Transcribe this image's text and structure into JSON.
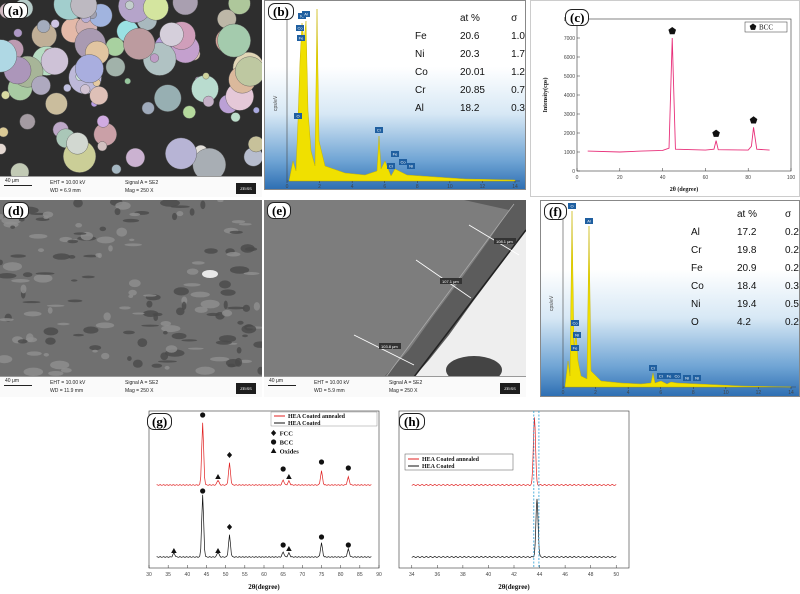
{
  "panels": {
    "a": {
      "label": "(a)",
      "footer": {
        "scale": "40 μm",
        "eht": "EHT = 10.00 kV",
        "wd": "WD = 6.9 mm",
        "signal": "Signal A = SE2",
        "mag": "Mag =      250 X"
      }
    },
    "b": {
      "label": "(b)",
      "table_header": [
        "at %",
        "σ"
      ],
      "rows": [
        {
          "el": "Fe",
          "at": "20.6",
          "sd": "1.0"
        },
        {
          "el": "Ni",
          "at": "20.3",
          "sd": "1.7"
        },
        {
          "el": "Co",
          "at": "20.01",
          "sd": "1.2"
        },
        {
          "el": "Cr",
          "at": "20.85",
          "sd": "0.7"
        },
        {
          "el": "Al",
          "at": "18.2",
          "sd": "0.3"
        }
      ],
      "ylabel": "cps/eV",
      "xticks": [
        "0",
        "2",
        "4",
        "6",
        "8",
        "10",
        "12",
        "14"
      ],
      "peaks": [
        "Fe",
        "Ni",
        "Co",
        "Al",
        "Cr",
        "Cr",
        "Fe",
        "Co",
        "Ni",
        "Ni",
        "O"
      ]
    },
    "c": {
      "label": "(c)",
      "legend": "BCC",
      "ylabel": "Intensity(cps)",
      "xlabel": "2θ (degree)",
      "yticks": [
        "0",
        "1000",
        "2000",
        "3000",
        "4000",
        "5000",
        "6000",
        "7000",
        "8000"
      ],
      "xticks": [
        "0",
        "20",
        "40",
        "60",
        "80",
        "100"
      ]
    },
    "d": {
      "label": "(d)",
      "footer": {
        "scale": "40 μm",
        "eht": "EHT = 10.00 kV",
        "wd": "WD = 11.9 mm",
        "signal": "Signal A = SE2",
        "mag": "Mag =      250 X"
      }
    },
    "e": {
      "label": "(e)",
      "footer": {
        "scale": "40 μm",
        "eht": "EHT = 10.00 kV",
        "wd": "WD = 5.9 mm",
        "signal": "Signal A = SE2",
        "mag": "Mag =      250 X"
      },
      "measurements": [
        "103.8 μm",
        "107.1 μm",
        "108.1 μm"
      ]
    },
    "f": {
      "label": "(f)",
      "table_header": [
        "at %",
        "σ"
      ],
      "rows": [
        {
          "el": "Al",
          "at": "17.2",
          "sd": "0.2"
        },
        {
          "el": "Cr",
          "at": "19.8",
          "sd": "0.2"
        },
        {
          "el": "Fe",
          "at": "20.9",
          "sd": "0.2"
        },
        {
          "el": "Co",
          "at": "18.4",
          "sd": "0.3"
        },
        {
          "el": "Ni",
          "at": "19.4",
          "sd": "0.5"
        },
        {
          "el": "O",
          "at": "4.2",
          "sd": "0.2"
        }
      ],
      "ylabel": "cps/eV",
      "xticks": [
        "0",
        "2",
        "4",
        "6",
        "8",
        "10",
        "12",
        "14"
      ]
    },
    "g": {
      "label": "(g)",
      "legend": [
        "HEA Coated annealed",
        "HEA Coated"
      ],
      "markers": [
        "FCC",
        "BCC",
        "Oxides"
      ],
      "xlabel": "2θ(degree)",
      "xticks": [
        "30",
        "35",
        "40",
        "45",
        "50",
        "55",
        "60",
        "65",
        "70",
        "75",
        "80",
        "85",
        "90"
      ]
    },
    "h": {
      "label": "(h)",
      "legend": [
        "HEA Coated annealed",
        "HEA Coated"
      ],
      "xlabel": "2θ(degree)",
      "xticks": [
        "34",
        "36",
        "38",
        "40",
        "42",
        "44",
        "46",
        "48",
        "50"
      ]
    }
  },
  "zeiss_text": "ZEISS",
  "colors": {
    "annealed": "#e02020",
    "coated": "#111111",
    "c_line": "#e8307a",
    "eds_fill": "#f0e000",
    "dashed": "#2a9fd6"
  },
  "chart_data": [
    {
      "type": "line",
      "title": "",
      "xlabel": "2θ (degree)",
      "ylabel": "Intensity(cps)",
      "xlim": [
        0,
        100
      ],
      "ylim": [
        0,
        8000
      ],
      "series": [
        {
          "name": "",
          "x": [
            5,
            20,
            30,
            40,
            43,
            44.5,
            46,
            60,
            64,
            65,
            66,
            80,
            81.5,
            82.5,
            84,
            90
          ],
          "values": [
            1050,
            1000,
            1050,
            1080,
            1200,
            7000,
            1150,
            1100,
            1150,
            1600,
            1120,
            1100,
            1300,
            2300,
            1150,
            1100
          ]
        }
      ],
      "markers": [
        {
          "label": "BCC",
          "x": 44.5
        },
        {
          "label": "BCC",
          "x": 65
        },
        {
          "label": "BCC",
          "x": 82.5
        }
      ]
    },
    {
      "type": "line",
      "title": "",
      "xlabel": "2θ(degree)",
      "ylabel": "",
      "xlim": [
        30,
        90
      ],
      "series": [
        {
          "name": "HEA Coated annealed",
          "peaks": [
            44,
            48,
            51,
            65,
            66.5,
            75,
            82
          ]
        },
        {
          "name": "HEA Coated",
          "peaks": [
            36.5,
            44,
            48,
            51,
            65,
            66.5,
            75,
            82
          ]
        }
      ]
    },
    {
      "type": "line",
      "title": "",
      "xlabel": "2θ(degree)",
      "ylabel": "",
      "xlim": [
        33,
        51
      ],
      "series": [
        {
          "name": "HEA Coated annealed",
          "peaks": [
            43.6
          ]
        },
        {
          "name": "HEA Coated",
          "peaks": [
            43.8
          ]
        }
      ]
    }
  ]
}
